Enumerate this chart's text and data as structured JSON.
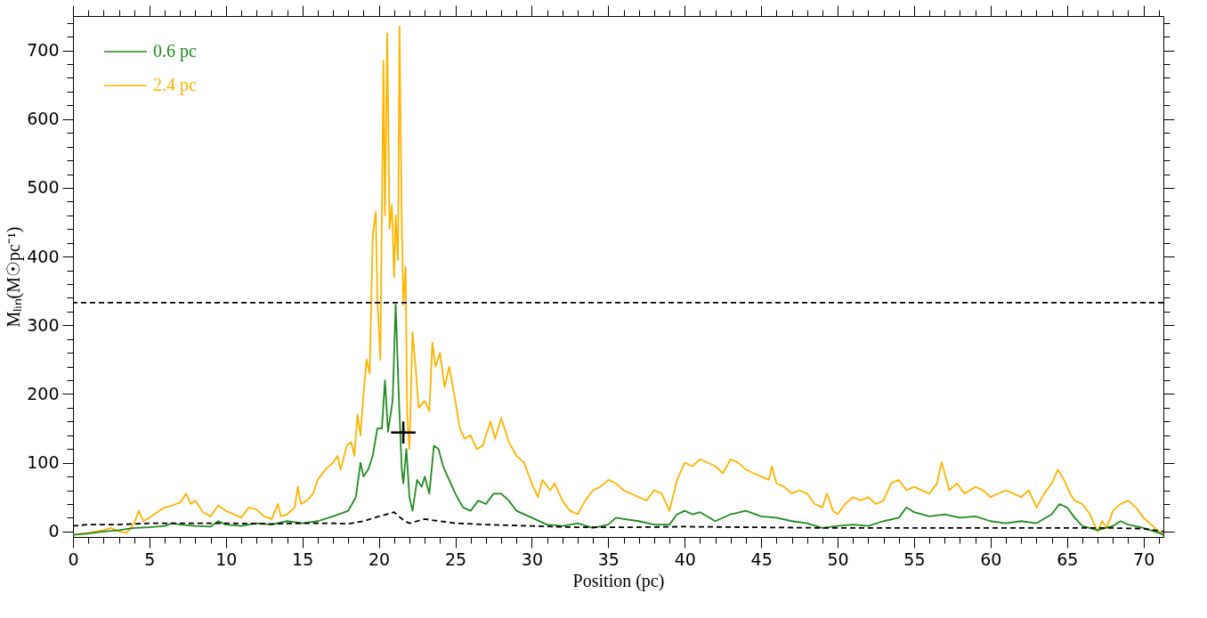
{
  "chart_data": {
    "type": "line",
    "xlabel": "Position (pc)",
    "ylabel": "Mₗᵢₙ(M☉pc⁻¹)",
    "xlim": [
      0,
      71.3
    ],
    "ylim": [
      -8,
      750
    ],
    "xticks": [
      0,
      {
        "value": 1,
        "label": null
      },
      {
        "value": 2,
        "label": null
      },
      {
        "value": 3,
        "label": null
      },
      {
        "value": 4,
        "label": null
      },
      5,
      {
        "value": 6,
        "label": null
      },
      {
        "value": 7,
        "label": null
      },
      {
        "value": 8,
        "label": null
      },
      {
        "value": 9,
        "label": null
      },
      10,
      {
        "value": 11,
        "label": null
      },
      {
        "value": 12,
        "label": null
      },
      {
        "value": 13,
        "label": null
      },
      {
        "value": 14,
        "label": null
      },
      15,
      {
        "value": 16,
        "label": null
      },
      {
        "value": 17,
        "label": null
      },
      {
        "value": 18,
        "label": null
      },
      {
        "value": 19,
        "label": null
      },
      20,
      {
        "value": 21,
        "label": null
      },
      {
        "value": 22,
        "label": null
      },
      {
        "value": 23,
        "label": null
      },
      {
        "value": 24,
        "label": null
      },
      25,
      {
        "value": 26,
        "label": null
      },
      {
        "value": 27,
        "label": null
      },
      {
        "value": 28,
        "label": null
      },
      {
        "value": 29,
        "label": null
      },
      30,
      {
        "value": 31,
        "label": null
      },
      {
        "value": 32,
        "label": null
      },
      {
        "value": 33,
        "label": null
      },
      {
        "value": 34,
        "label": null
      },
      35,
      {
        "value": 36,
        "label": null
      },
      {
        "value": 37,
        "label": null
      },
      {
        "value": 38,
        "label": null
      },
      {
        "value": 39,
        "label": null
      },
      40,
      {
        "value": 41,
        "label": null
      },
      {
        "value": 42,
        "label": null
      },
      {
        "value": 43,
        "label": null
      },
      {
        "value": 44,
        "label": null
      },
      45,
      {
        "value": 46,
        "label": null
      },
      {
        "value": 47,
        "label": null
      },
      {
        "value": 48,
        "label": null
      },
      {
        "value": 49,
        "label": null
      },
      50,
      {
        "value": 51,
        "label": null
      },
      {
        "value": 52,
        "label": null
      },
      {
        "value": 53,
        "label": null
      },
      {
        "value": 54,
        "label": null
      },
      55,
      {
        "value": 56,
        "label": null
      },
      {
        "value": 57,
        "label": null
      },
      {
        "value": 58,
        "label": null
      },
      {
        "value": 59,
        "label": null
      },
      60,
      {
        "value": 61,
        "label": null
      },
      {
        "value": 62,
        "label": null
      },
      {
        "value": 63,
        "label": null
      },
      {
        "value": 64,
        "label": null
      },
      65,
      {
        "value": 66,
        "label": null
      },
      {
        "value": 67,
        "label": null
      },
      {
        "value": 68,
        "label": null
      },
      {
        "value": 69,
        "label": null
      },
      70,
      {
        "value": 71,
        "label": null
      }
    ],
    "yticks": [
      0,
      {
        "value": 20,
        "label": null
      },
      {
        "value": 40,
        "label": null
      },
      {
        "value": 60,
        "label": null
      },
      {
        "value": 80,
        "label": null
      },
      100,
      {
        "value": 120,
        "label": null
      },
      {
        "value": 140,
        "label": null
      },
      {
        "value": 160,
        "label": null
      },
      {
        "value": 180,
        "label": null
      },
      200,
      {
        "value": 220,
        "label": null
      },
      {
        "value": 240,
        "label": null
      },
      {
        "value": 260,
        "label": null
      },
      {
        "value": 280,
        "label": null
      },
      300,
      {
        "value": 320,
        "label": null
      },
      {
        "value": 340,
        "label": null
      },
      {
        "value": 360,
        "label": null
      },
      {
        "value": 380,
        "label": null
      },
      400,
      {
        "value": 420,
        "label": null
      },
      {
        "value": 440,
        "label": null
      },
      {
        "value": 460,
        "label": null
      },
      {
        "value": 480,
        "label": null
      },
      500,
      {
        "value": 520,
        "label": null
      },
      {
        "value": 540,
        "label": null
      },
      {
        "value": 560,
        "label": null
      },
      {
        "value": 580,
        "label": null
      },
      600,
      {
        "value": 620,
        "label": null
      },
      {
        "value": 640,
        "label": null
      },
      {
        "value": 660,
        "label": null
      },
      {
        "value": 680,
        "label": null
      },
      700,
      {
        "value": 720,
        "label": null
      },
      {
        "value": 740,
        "label": null
      }
    ],
    "grid": false,
    "legend": "top left",
    "marker": "none",
    "ref_lines": [
      {
        "axis": "y",
        "value": 333,
        "color": "#000000",
        "line_style": "dashed"
      }
    ],
    "series": [
      {
        "name": "2.4 pc",
        "color": "#ffb400",
        "line_style": "solid",
        "x": [
          0,
          1,
          2,
          2.5,
          3,
          3.5,
          4,
          4.3,
          4.6,
          5,
          5.5,
          6,
          6.5,
          7,
          7.4,
          7.7,
          8,
          8.5,
          9,
          9.5,
          10,
          10.5,
          11,
          11.5,
          12,
          12.5,
          13,
          13.4,
          13.6,
          14,
          14.5,
          14.7,
          14.9,
          15.3,
          15.7,
          16,
          16.5,
          17,
          17.3,
          17.5,
          17.9,
          18.2,
          18.4,
          18.6,
          18.8,
          19,
          19.2,
          19.4,
          19.6,
          19.8,
          19.9,
          20.1,
          20.3,
          20.4,
          20.55,
          20.7,
          20.85,
          21.0,
          21.1,
          21.25,
          21.35,
          21.5,
          21.6,
          21.75,
          21.85,
          22.0,
          22.2,
          22.4,
          22.6,
          23,
          23.3,
          23.5,
          23.7,
          24,
          24.3,
          24.6,
          25,
          25.3,
          25.6,
          26,
          26.4,
          26.8,
          27.3,
          27.6,
          28,
          28.5,
          29,
          29.5,
          30,
          30.4,
          30.7,
          31.2,
          31.5,
          32,
          32.5,
          33,
          33.5,
          34,
          34.5,
          35,
          35.5,
          36,
          37,
          37.5,
          38,
          38.5,
          39,
          39.5,
          40,
          40.5,
          41,
          42,
          42.5,
          43,
          43.5,
          44,
          44.5,
          45,
          45.5,
          45.7,
          46,
          46.5,
          47,
          47.5,
          48,
          48.5,
          49,
          49.3,
          49.7,
          50,
          50.5,
          51,
          51.5,
          52,
          52.5,
          53,
          53.5,
          54,
          54.5,
          55,
          56,
          56.5,
          56.8,
          57.3,
          57.8,
          58.3,
          59,
          59.5,
          60,
          61,
          61.5,
          62,
          62.5,
          63,
          63.5,
          64,
          64.4,
          64.8,
          65.2,
          65.5,
          66,
          66.5,
          67,
          67.3,
          67.6,
          68,
          68.5,
          69,
          69.5,
          70,
          70.5,
          71,
          71.3
        ],
        "values": [
          -5,
          -2,
          2,
          5,
          0,
          -2,
          12,
          30,
          15,
          20,
          28,
          35,
          38,
          42,
          55,
          40,
          45,
          28,
          22,
          38,
          30,
          25,
          20,
          35,
          32,
          22,
          18,
          40,
          22,
          25,
          35,
          65,
          40,
          45,
          55,
          75,
          90,
          100,
          110,
          90,
          125,
          130,
          110,
          170,
          140,
          200,
          250,
          230,
          430,
          465,
          340,
          250,
          685,
          460,
          725,
          440,
          475,
          370,
          460,
          395,
          735,
          450,
          330,
          385,
          170,
          120,
          290,
          240,
          180,
          190,
          175,
          275,
          240,
          260,
          210,
          240,
          190,
          150,
          135,
          140,
          120,
          125,
          160,
          135,
          165,
          130,
          110,
          100,
          70,
          50,
          75,
          60,
          70,
          45,
          30,
          25,
          45,
          60,
          65,
          75,
          70,
          60,
          50,
          45,
          60,
          55,
          30,
          75,
          100,
          95,
          105,
          95,
          85,
          105,
          100,
          90,
          85,
          80,
          75,
          95,
          70,
          65,
          55,
          60,
          55,
          40,
          35,
          55,
          30,
          25,
          40,
          50,
          45,
          50,
          40,
          45,
          70,
          75,
          60,
          65,
          55,
          70,
          101,
          60,
          70,
          55,
          65,
          60,
          50,
          60,
          55,
          50,
          60,
          35,
          55,
          70,
          90,
          75,
          55,
          45,
          40,
          25,
          0,
          15,
          5,
          30,
          40,
          45,
          35,
          20,
          10,
          0,
          -5
        ]
      },
      {
        "name": "0.6 pc",
        "color": "#228b22",
        "line_style": "solid",
        "x": [
          0,
          1,
          2,
          3,
          4,
          5,
          6,
          6.5,
          7,
          8,
          9,
          9.5,
          10,
          11,
          12,
          13,
          14,
          15,
          16,
          17,
          18,
          18.5,
          18.8,
          19,
          19.3,
          19.6,
          19.9,
          20.2,
          20.4,
          20.6,
          20.9,
          21.1,
          21.3,
          21.5,
          21.6,
          21.8,
          22,
          22.2,
          22.5,
          22.8,
          23,
          23.3,
          23.6,
          23.9,
          24.2,
          24.5,
          25,
          25.5,
          26,
          26.5,
          27,
          27.5,
          28,
          28.5,
          29,
          30,
          31,
          32,
          33,
          34,
          35,
          35.5,
          36,
          37,
          38,
          39,
          39.5,
          40,
          40.5,
          41,
          42,
          43,
          44,
          45,
          46,
          47,
          48,
          49,
          50,
          51,
          52,
          53,
          54,
          54.5,
          55,
          56,
          57,
          58,
          59,
          60,
          61,
          62,
          63,
          64,
          64.5,
          65,
          65.5,
          66,
          67,
          68,
          68.5,
          69,
          70,
          71,
          71.3
        ],
        "values": [
          -5,
          -3,
          0,
          2,
          5,
          6,
          8,
          12,
          10,
          8,
          7,
          15,
          10,
          8,
          12,
          10,
          15,
          12,
          15,
          22,
          30,
          50,
          100,
          80,
          90,
          110,
          150,
          150,
          220,
          145,
          190,
          330,
          200,
          90,
          70,
          120,
          50,
          30,
          75,
          65,
          80,
          55,
          125,
          120,
          95,
          80,
          55,
          35,
          30,
          45,
          40,
          55,
          55,
          45,
          30,
          20,
          10,
          8,
          12,
          5,
          10,
          20,
          18,
          15,
          10,
          10,
          25,
          30,
          25,
          28,
          15,
          25,
          30,
          22,
          20,
          15,
          12,
          5,
          8,
          10,
          8,
          15,
          20,
          35,
          28,
          22,
          25,
          20,
          22,
          15,
          12,
          15,
          12,
          25,
          40,
          35,
          20,
          8,
          2,
          8,
          15,
          10,
          5,
          -2,
          -5
        ]
      },
      {
        "color": "#000000",
        "line_style": "dashed",
        "x": [
          0,
          1,
          2,
          3,
          5,
          7,
          10,
          13,
          15,
          17,
          18,
          19,
          20,
          20.5,
          21,
          21.3,
          21.7,
          22,
          23,
          24,
          25,
          27,
          30,
          33,
          36,
          40,
          45,
          50,
          55,
          60,
          65,
          68,
          70,
          71.3
        ],
        "values": [
          8,
          10,
          10,
          10,
          12,
          12,
          12,
          11,
          12,
          12,
          11,
          15,
          22,
          25,
          28,
          22,
          15,
          12,
          18,
          15,
          12,
          10,
          8,
          6,
          6,
          7,
          6,
          5,
          5,
          5,
          5,
          5,
          4,
          0
        ]
      },
      {
        "color": "#000000",
        "type": "scatter",
        "marker": "cross",
        "x": [
          21.6
        ],
        "values": [
          144
        ],
        "errors": [
          16
        ],
        "xerrors": [
          0.8
        ]
      }
    ]
  }
}
